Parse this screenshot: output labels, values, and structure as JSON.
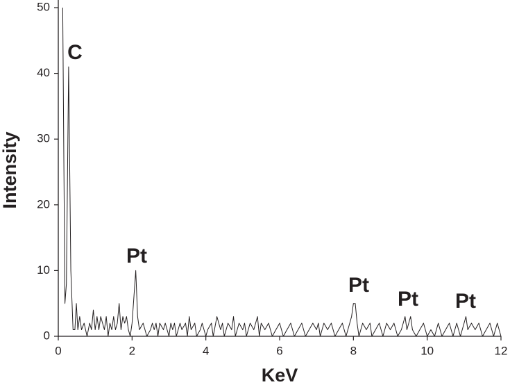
{
  "chart_data": {
    "type": "line",
    "xlabel": "KeV",
    "ylabel": "Intensity",
    "xlim": [
      0,
      12
    ],
    "ylim": [
      0,
      50
    ],
    "xticks": [
      0,
      2,
      4,
      6,
      8,
      10,
      12
    ],
    "yticks": [
      0,
      10,
      20,
      30,
      40,
      50
    ],
    "grid": false,
    "annotations": [
      "C",
      "Pt",
      "Pt",
      "Pt",
      "Pt"
    ],
    "series": [
      {
        "color": "#231f20",
        "x": [
          0.12,
          0.18,
          0.22,
          0.28,
          0.34,
          0.4,
          0.45,
          0.49,
          0.53,
          0.58,
          0.63,
          0.7,
          0.78,
          0.85,
          0.9,
          0.95,
          1.0,
          1.05,
          1.1,
          1.15,
          1.2,
          1.25,
          1.3,
          1.35,
          1.4,
          1.45,
          1.5,
          1.55,
          1.6,
          1.65,
          1.7,
          1.75,
          1.8,
          1.85,
          1.9,
          1.95,
          2.0,
          2.05,
          2.1,
          2.15,
          2.2,
          2.3,
          2.4,
          2.5,
          2.55,
          2.6,
          2.65,
          2.7,
          2.75,
          2.85,
          2.9,
          3.0,
          3.05,
          3.1,
          3.15,
          3.2,
          3.3,
          3.35,
          3.45,
          3.5,
          3.55,
          3.6,
          3.7,
          3.75,
          3.85,
          3.9,
          4.0,
          4.05,
          4.15,
          4.2,
          4.3,
          4.4,
          4.45,
          4.5,
          4.6,
          4.7,
          4.75,
          4.8,
          4.9,
          5.0,
          5.05,
          5.1,
          5.2,
          5.3,
          5.4,
          5.45,
          5.5,
          5.6,
          5.7,
          5.8,
          5.9,
          6.0,
          6.1,
          6.2,
          6.3,
          6.4,
          6.5,
          6.6,
          6.7,
          6.8,
          6.9,
          7.0,
          7.05,
          7.1,
          7.2,
          7.3,
          7.4,
          7.5,
          7.6,
          7.7,
          7.8,
          7.9,
          7.95,
          8.0,
          8.05,
          8.1,
          8.15,
          8.25,
          8.35,
          8.45,
          8.5,
          8.6,
          8.7,
          8.8,
          8.9,
          9.0,
          9.1,
          9.2,
          9.3,
          9.4,
          9.45,
          9.55,
          9.6,
          9.7,
          9.8,
          9.9,
          10.0,
          10.1,
          10.2,
          10.3,
          10.4,
          10.5,
          10.6,
          10.7,
          10.8,
          10.9,
          11.0,
          11.05,
          11.1,
          11.2,
          11.3,
          11.4,
          11.5,
          11.6,
          11.7,
          11.8,
          11.9,
          12.0
        ],
        "values": [
          50,
          5,
          8,
          41,
          10,
          1,
          1,
          5,
          1,
          3,
          1,
          2,
          0,
          2,
          1,
          4,
          1,
          3,
          1,
          3,
          2,
          1,
          3,
          0,
          2,
          1,
          3,
          1,
          2,
          5,
          1,
          3,
          2,
          3,
          1,
          0,
          2,
          6,
          10,
          3,
          1,
          2,
          0,
          1,
          2,
          1,
          2,
          0,
          2,
          1,
          2,
          0,
          2,
          1,
          2,
          0,
          2,
          1,
          2,
          0,
          3,
          1,
          2,
          0,
          1,
          2,
          0,
          1,
          2,
          0,
          3,
          1,
          2,
          0,
          2,
          1,
          3,
          0,
          2,
          1,
          2,
          0,
          2,
          1,
          3,
          0,
          2,
          1,
          2,
          0,
          1,
          2,
          0,
          1,
          2,
          0,
          1,
          2,
          0,
          1,
          2,
          1,
          2,
          0,
          2,
          1,
          2,
          0,
          1,
          2,
          0,
          2,
          3,
          5,
          5,
          2,
          0,
          2,
          1,
          2,
          0,
          1,
          2,
          0,
          2,
          1,
          2,
          0,
          1,
          3,
          1,
          3,
          1,
          0,
          1,
          2,
          0,
          1,
          0,
          2,
          0,
          1,
          2,
          0,
          2,
          0,
          2,
          3,
          1,
          2,
          1,
          2,
          0,
          1,
          2,
          0,
          2,
          0
        ]
      }
    ]
  }
}
